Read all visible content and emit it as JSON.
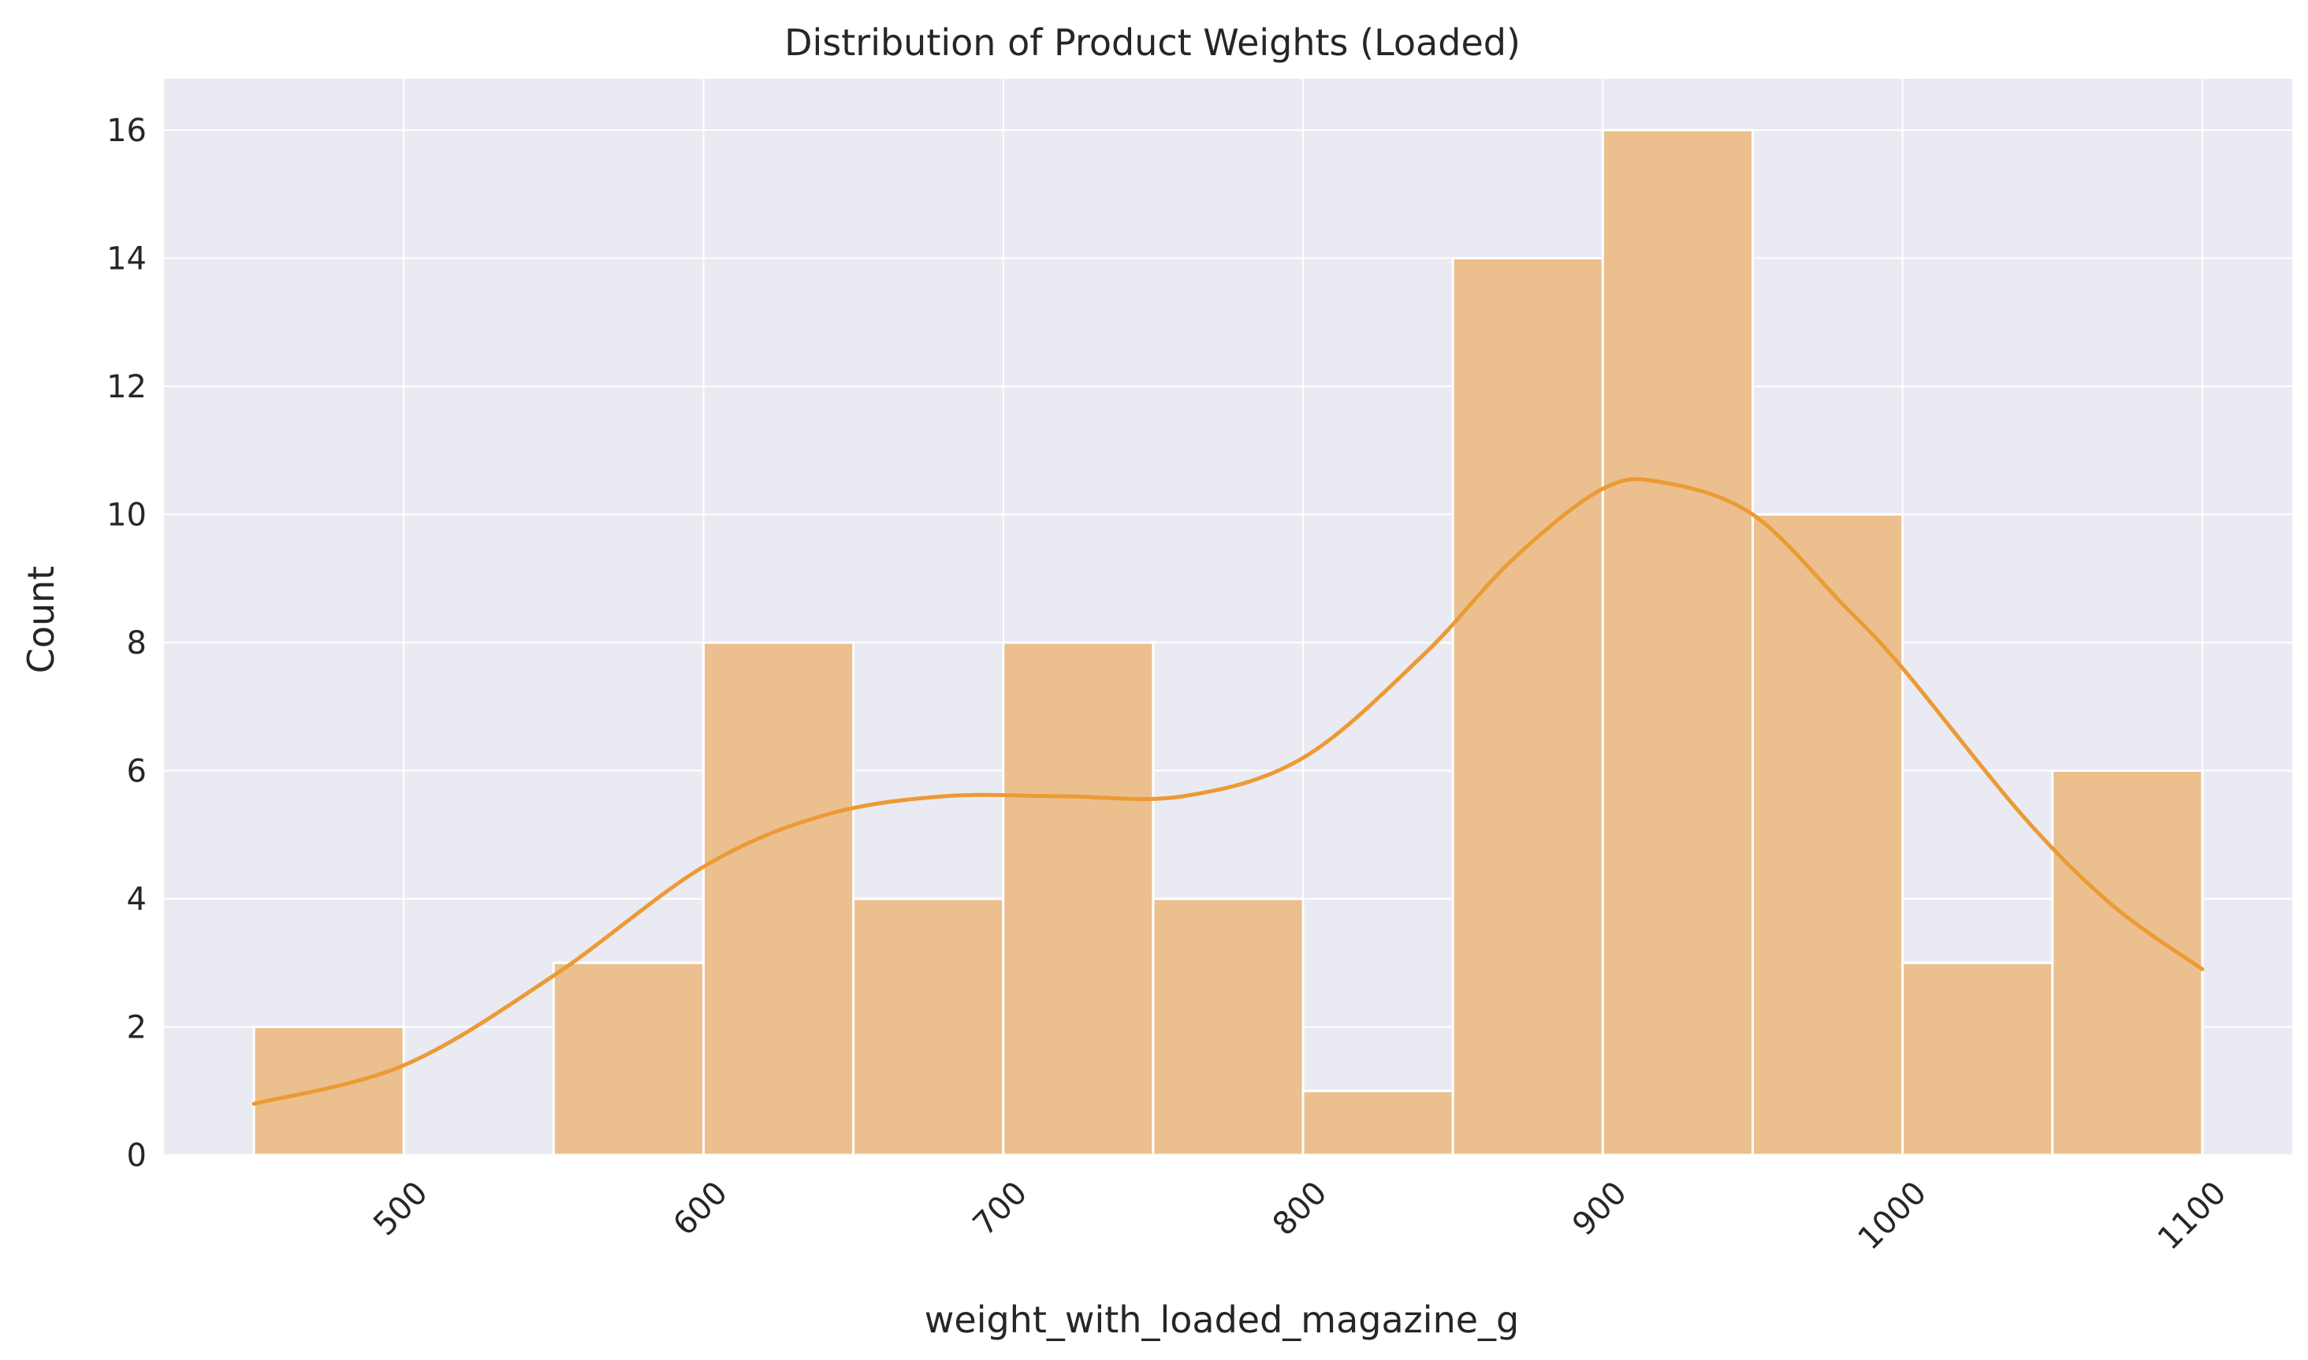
{
  "chart_data": {
    "type": "bar",
    "subtype": "histogram_with_kde",
    "title": "Distribution of Product Weights (Loaded)",
    "xlabel": "weight_with_loaded_magazine_g",
    "ylabel": "Count",
    "xlim": [
      420,
      1130
    ],
    "ylim": [
      0,
      16.8
    ],
    "x_ticks": [
      500,
      600,
      700,
      800,
      900,
      1000,
      1100
    ],
    "y_ticks": [
      0,
      2,
      4,
      6,
      8,
      10,
      12,
      14,
      16
    ],
    "x_tick_rotation_deg": 45,
    "grid": true,
    "legend": "none",
    "bin_edges": [
      450,
      500,
      550,
      600,
      650,
      700,
      750,
      800,
      850,
      900,
      950,
      1000,
      1050,
      1100
    ],
    "counts": [
      2,
      0,
      3,
      8,
      4,
      8,
      4,
      1,
      14,
      16,
      10,
      3,
      6
    ],
    "kde_curve": {
      "x": [
        450,
        500,
        550,
        600,
        640,
        680,
        720,
        760,
        800,
        840,
        870,
        900,
        920,
        950,
        980,
        1000,
        1040,
        1070,
        1100
      ],
      "y": [
        0.8,
        1.4,
        2.8,
        4.5,
        5.3,
        5.6,
        5.6,
        5.6,
        6.2,
        7.8,
        9.3,
        10.4,
        10.5,
        10.0,
        8.6,
        7.6,
        5.3,
        3.9,
        2.9
      ]
    },
    "colors": {
      "plot_background": "#eaeaf2",
      "grid": "#ffffff",
      "bar_fill": "#ebc08e",
      "bar_edge": "#ffffff",
      "kde_line": "#ec9a34",
      "text": "#262626"
    }
  }
}
